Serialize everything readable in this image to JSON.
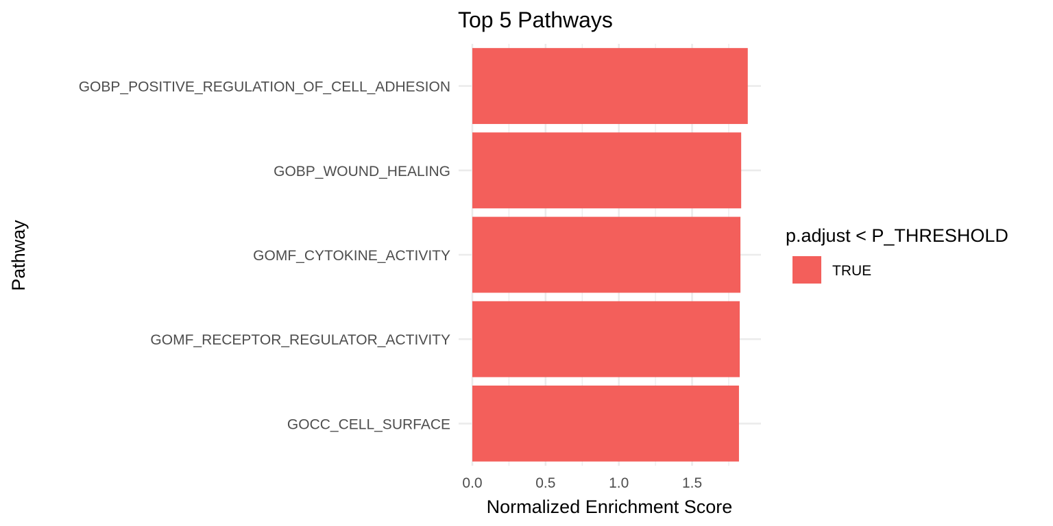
{
  "chart_data": {
    "type": "bar",
    "orientation": "horizontal",
    "title": "Top 5 Pathways",
    "xlabel": "Normalized Enrichment Score",
    "ylabel": "Pathway",
    "categories": [
      "GOBP_POSITIVE_REGULATION_OF_CELL_ADHESION",
      "GOBP_WOUND_HEALING",
      "GOMF_CYTOKINE_ACTIVITY",
      "GOMF_RECEPTOR_REGULATOR_ACTIVITY",
      "GOCC_CELL_SURFACE"
    ],
    "values": [
      1.88,
      1.835,
      1.83,
      1.825,
      1.82
    ],
    "fill_group": [
      "TRUE",
      "TRUE",
      "TRUE",
      "TRUE",
      "TRUE"
    ],
    "xlim": [
      0,
      1.97
    ],
    "x_ticks": [
      0,
      0.5,
      1,
      1.5
    ],
    "x_tick_labels": [
      "0.0",
      "0.5",
      "1.0",
      "1.5"
    ],
    "grid": true,
    "legend": {
      "title": "p.adjust < P_THRESHOLD",
      "placement": "right",
      "entries": [
        {
          "label": "TRUE",
          "color": "#F35F5B"
        }
      ]
    },
    "colors": {
      "bar": "#F35F5B",
      "grid": "#EBEBEB"
    }
  }
}
